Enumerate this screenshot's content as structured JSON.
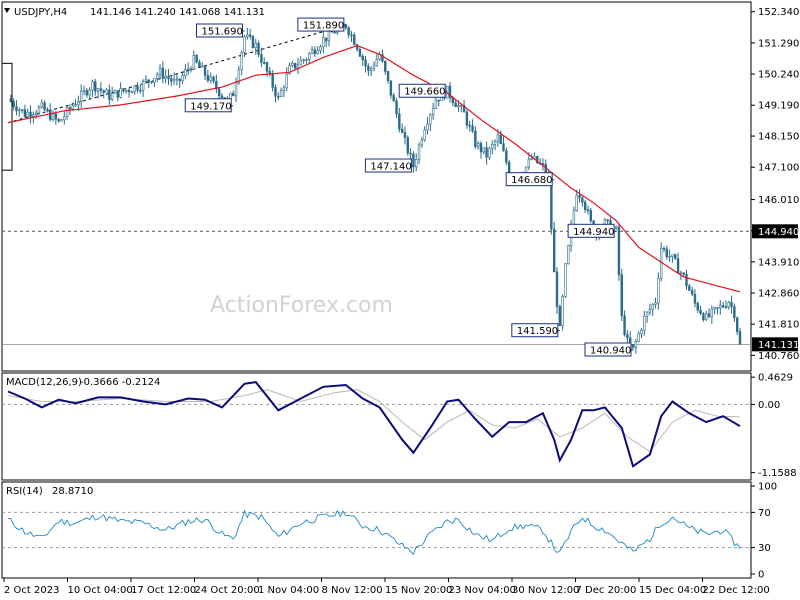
{
  "header": {
    "symbol": "USDJPY,H4",
    "ohlc": "141.146 141.240 141.068 141.131",
    "watermark": "ActionForex.com"
  },
  "colors": {
    "candle": "#2a6b8a",
    "ma": "#e0141e",
    "macd": "#0b0b7a",
    "signal": "#b8b8b8",
    "rsi": "#1e88c8",
    "annot_border": "#1c2f7e",
    "trend": "#000000",
    "grid": "#999999"
  },
  "chart_data": [
    {
      "type": "candlestick",
      "name": "price",
      "ylim": [
        140.3,
        152.6
      ],
      "y_ticks": [
        "152.340",
        "151.290",
        "150.240",
        "149.190",
        "148.150",
        "147.100",
        "146.010",
        "144.960",
        "143.910",
        "142.860",
        "141.810",
        "140.760"
      ],
      "current_price": "141.131",
      "reference_level": {
        "value": 144.94,
        "label": "144.940"
      },
      "x_labels": [
        "2 Oct 2023",
        "10 Oct 04:00",
        "17 Oct 12:00",
        "24 Oct 20:00",
        "1 Nov 04:00",
        "8 Nov 12:00",
        "15 Nov 20:00",
        "23 Nov 04:00",
        "30 Nov 12:00",
        "7 Dec 20:00",
        "15 Dec 04:00",
        "22 Dec 12:00"
      ],
      "price_path": [
        [
          0,
          149.4
        ],
        [
          3,
          148.9
        ],
        [
          6,
          149.1
        ],
        [
          9,
          148.6
        ],
        [
          12,
          149.3
        ],
        [
          15,
          149.9
        ],
        [
          18,
          149.5
        ],
        [
          21,
          149.7
        ],
        [
          24,
          149.9
        ],
        [
          27,
          150.3
        ],
        [
          30,
          149.9
        ],
        [
          33,
          150.7
        ],
        [
          36,
          150.0
        ],
        [
          39,
          149.3
        ],
        [
          40,
          149.6
        ],
        [
          42,
          151.5
        ],
        [
          44,
          151.2
        ],
        [
          46,
          150.3
        ],
        [
          48,
          149.4
        ],
        [
          50,
          150.4
        ],
        [
          53,
          150.8
        ],
        [
          56,
          151.4
        ],
        [
          58,
          151.7
        ],
        [
          60,
          151.89
        ],
        [
          62,
          151.2
        ],
        [
          64,
          150.3
        ],
        [
          66,
          150.9
        ],
        [
          68,
          149.6
        ],
        [
          70,
          148.2
        ],
        [
          72,
          147.14
        ],
        [
          74,
          148.5
        ],
        [
          76,
          149.4
        ],
        [
          78,
          149.66
        ],
        [
          81,
          148.9
        ],
        [
          83,
          147.9
        ],
        [
          85,
          147.5
        ],
        [
          87,
          148.1
        ],
        [
          89,
          147.0
        ],
        [
          91,
          146.8
        ],
        [
          93,
          147.4
        ],
        [
          95,
          147.1
        ],
        [
          96,
          146.6
        ],
        [
          97,
          143.5
        ],
        [
          98,
          141.59
        ],
        [
          99,
          143.7
        ],
        [
          101,
          146.3
        ],
        [
          102,
          146.1
        ],
        [
          104,
          144.9
        ],
        [
          106,
          145.2
        ],
        [
          108,
          144.94
        ],
        [
          109,
          142.0
        ],
        [
          110,
          141.2
        ],
        [
          111,
          140.94
        ],
        [
          113,
          142.0
        ],
        [
          115,
          142.6
        ],
        [
          116,
          144.4
        ],
        [
          118,
          144.0
        ],
        [
          120,
          143.4
        ],
        [
          122,
          142.5
        ],
        [
          124,
          142.0
        ],
        [
          126,
          142.3
        ],
        [
          128,
          142.6
        ],
        [
          129,
          142.2
        ],
        [
          130,
          141.1
        ]
      ],
      "annotations": [
        {
          "label": "151.690",
          "t": 42,
          "value": 151.69
        },
        {
          "label": "151.890",
          "t": 60,
          "value": 151.89
        },
        {
          "label": "149.170",
          "t": 40,
          "value": 149.17
        },
        {
          "label": "149.660",
          "t": 78,
          "value": 149.66
        },
        {
          "label": "147.140",
          "t": 72,
          "value": 147.14
        },
        {
          "label": "146.680",
          "t": 97,
          "value": 146.68
        },
        {
          "label": "144.940",
          "t": 108,
          "value": 144.94
        },
        {
          "label": "141.590",
          "t": 98,
          "value": 141.59
        },
        {
          "label": "140.940",
          "t": 111,
          "value": 140.94
        }
      ],
      "trendline": [
        [
          0,
          148.6
        ],
        [
          60,
          151.89
        ]
      ],
      "moving_average": [
        [
          0,
          148.6
        ],
        [
          10,
          149.0
        ],
        [
          20,
          149.2
        ],
        [
          30,
          149.5
        ],
        [
          38,
          149.8
        ],
        [
          44,
          150.2
        ],
        [
          50,
          150.3
        ],
        [
          56,
          150.8
        ],
        [
          62,
          151.2
        ],
        [
          66,
          150.9
        ],
        [
          72,
          150.2
        ],
        [
          78,
          149.6
        ],
        [
          84,
          148.7
        ],
        [
          90,
          147.9
        ],
        [
          96,
          147.0
        ],
        [
          100,
          146.4
        ],
        [
          104,
          145.9
        ],
        [
          108,
          145.3
        ],
        [
          112,
          144.4
        ],
        [
          116,
          143.9
        ],
        [
          120,
          143.4
        ],
        [
          126,
          143.1
        ],
        [
          130,
          142.9
        ]
      ]
    },
    {
      "type": "line",
      "name": "MACD",
      "label": "MACD(12,26,9)",
      "values_text": "-0.3666 -0.2124",
      "ylim": [
        -1.25,
        0.5
      ],
      "y_ticks": [
        "0.4629",
        "0.00",
        "-1.1588"
      ],
      "series": [
        {
          "name": "macd",
          "points": [
            [
              0,
              0.22
            ],
            [
              3,
              0.1
            ],
            [
              6,
              -0.05
            ],
            [
              9,
              0.08
            ],
            [
              12,
              0.02
            ],
            [
              16,
              0.12
            ],
            [
              20,
              0.12
            ],
            [
              24,
              0.05
            ],
            [
              28,
              0.0
            ],
            [
              32,
              0.1
            ],
            [
              35,
              0.08
            ],
            [
              38,
              -0.05
            ],
            [
              42,
              0.35
            ],
            [
              44,
              0.38
            ],
            [
              48,
              -0.1
            ],
            [
              52,
              0.1
            ],
            [
              56,
              0.3
            ],
            [
              60,
              0.33
            ],
            [
              63,
              0.1
            ],
            [
              66,
              -0.05
            ],
            [
              70,
              -0.6
            ],
            [
              72,
              -0.82
            ],
            [
              75,
              -0.4
            ],
            [
              78,
              0.05
            ],
            [
              80,
              0.08
            ],
            [
              83,
              -0.25
            ],
            [
              86,
              -0.55
            ],
            [
              89,
              -0.3
            ],
            [
              92,
              -0.3
            ],
            [
              95,
              -0.15
            ],
            [
              97,
              -0.6
            ],
            [
              98,
              -0.95
            ],
            [
              100,
              -0.6
            ],
            [
              102,
              -0.1
            ],
            [
              104,
              -0.1
            ],
            [
              106,
              -0.05
            ],
            [
              109,
              -0.4
            ],
            [
              111,
              -1.05
            ],
            [
              114,
              -0.85
            ],
            [
              116,
              -0.2
            ],
            [
              118,
              0.05
            ],
            [
              121,
              -0.15
            ],
            [
              124,
              -0.3
            ],
            [
              127,
              -0.2
            ],
            [
              130,
              -0.37
            ]
          ]
        },
        {
          "name": "signal",
          "points": [
            [
              0,
              0.15
            ],
            [
              6,
              0.05
            ],
            [
              12,
              0.05
            ],
            [
              20,
              0.1
            ],
            [
              28,
              0.05
            ],
            [
              36,
              0.05
            ],
            [
              42,
              0.15
            ],
            [
              46,
              0.25
            ],
            [
              52,
              0.05
            ],
            [
              58,
              0.2
            ],
            [
              62,
              0.25
            ],
            [
              66,
              0.05
            ],
            [
              70,
              -0.3
            ],
            [
              74,
              -0.6
            ],
            [
              78,
              -0.3
            ],
            [
              82,
              -0.1
            ],
            [
              86,
              -0.35
            ],
            [
              90,
              -0.4
            ],
            [
              94,
              -0.25
            ],
            [
              98,
              -0.55
            ],
            [
              102,
              -0.4
            ],
            [
              106,
              -0.15
            ],
            [
              110,
              -0.55
            ],
            [
              114,
              -0.8
            ],
            [
              118,
              -0.3
            ],
            [
              122,
              -0.1
            ],
            [
              126,
              -0.2
            ],
            [
              130,
              -0.21
            ]
          ]
        }
      ]
    },
    {
      "type": "line",
      "name": "RSI",
      "label": "RSI(14)",
      "values_text": "28.8710",
      "ylim": [
        0,
        100
      ],
      "y_ticks": [
        "100",
        "70",
        "30",
        "0"
      ],
      "levels": [
        70,
        30
      ],
      "series": [
        {
          "name": "rsi",
          "points": [
            [
              0,
              62
            ],
            [
              3,
              48
            ],
            [
              6,
              40
            ],
            [
              9,
              60
            ],
            [
              12,
              58
            ],
            [
              16,
              66
            ],
            [
              20,
              60
            ],
            [
              24,
              58
            ],
            [
              28,
              50
            ],
            [
              32,
              60
            ],
            [
              35,
              62
            ],
            [
              38,
              45
            ],
            [
              40,
              40
            ],
            [
              42,
              68
            ],
            [
              45,
              65
            ],
            [
              48,
              42
            ],
            [
              52,
              58
            ],
            [
              56,
              65
            ],
            [
              60,
              70
            ],
            [
              63,
              55
            ],
            [
              66,
              50
            ],
            [
              70,
              32
            ],
            [
              72,
              25
            ],
            [
              75,
              45
            ],
            [
              78,
              60
            ],
            [
              80,
              62
            ],
            [
              83,
              45
            ],
            [
              86,
              38
            ],
            [
              89,
              52
            ],
            [
              92,
              55
            ],
            [
              95,
              50
            ],
            [
              97,
              30
            ],
            [
              98,
              23
            ],
            [
              100,
              48
            ],
            [
              102,
              65
            ],
            [
              104,
              55
            ],
            [
              106,
              50
            ],
            [
              109,
              35
            ],
            [
              111,
              25
            ],
            [
              114,
              40
            ],
            [
              116,
              58
            ],
            [
              118,
              65
            ],
            [
              121,
              52
            ],
            [
              124,
              45
            ],
            [
              127,
              50
            ],
            [
              130,
              29
            ]
          ]
        }
      ]
    }
  ]
}
